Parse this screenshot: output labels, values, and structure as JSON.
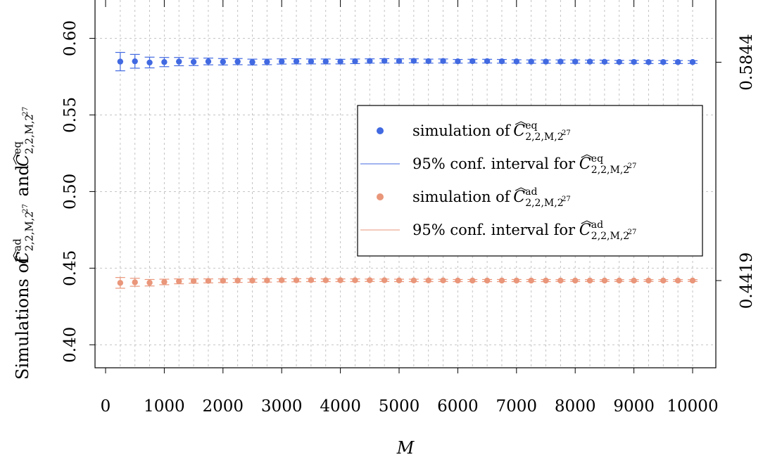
{
  "chart_data": {
    "type": "scatter",
    "xlabel": "M",
    "ylabel": {
      "prefix": "Simulations of",
      "symbol_ad": "C",
      "sup_ad": "ad",
      "sub": "2,2,M,2",
      "sub_exp": "27",
      "connector": "and",
      "symbol_eq": "C",
      "sup_eq": "eq"
    },
    "xlim": [
      0,
      10000
    ],
    "ylim": [
      0.385,
      0.625
    ],
    "x_ticks": [
      0,
      1000,
      2000,
      3000,
      4000,
      5000,
      6000,
      7000,
      8000,
      9000,
      10000
    ],
    "x_tick_labels": [
      "0",
      "1000",
      "2000",
      "3000",
      "4000",
      "5000",
      "6000",
      "7000",
      "8000",
      "9000",
      "10000"
    ],
    "y_ticks": [
      0.4,
      0.45,
      0.5,
      0.55,
      0.6
    ],
    "y_tick_labels": [
      "0.40",
      "0.45",
      "0.50",
      "0.55",
      "0.60"
    ],
    "right_ticks": [
      0.5844,
      0.4419
    ],
    "right_tick_labels": [
      "0.5844",
      "0.4419"
    ],
    "grid": true,
    "legend_position": "right",
    "colors": {
      "eq": "#4169e1",
      "ad": "#e9967a"
    },
    "x": [
      250,
      500,
      750,
      1000,
      1250,
      1500,
      1750,
      2000,
      2250,
      2500,
      2750,
      3000,
      3250,
      3500,
      3750,
      4000,
      4250,
      4500,
      4750,
      5000,
      5250,
      5500,
      5750,
      6000,
      6250,
      6500,
      6750,
      7000,
      7250,
      7500,
      7750,
      8000,
      8250,
      8500,
      8750,
      9000,
      9250,
      9500,
      9750,
      10000
    ],
    "series": [
      {
        "name": "eq",
        "values": [
          0.5848,
          0.585,
          0.5842,
          0.5845,
          0.5848,
          0.5846,
          0.5849,
          0.5847,
          0.5848,
          0.5845,
          0.5846,
          0.5849,
          0.585,
          0.5849,
          0.5849,
          0.5848,
          0.585,
          0.5852,
          0.5853,
          0.5852,
          0.5853,
          0.5851,
          0.5852,
          0.585,
          0.5851,
          0.5851,
          0.585,
          0.5849,
          0.5848,
          0.5848,
          0.5848,
          0.5848,
          0.5848,
          0.5847,
          0.5846,
          0.5846,
          0.5845,
          0.5845,
          0.5845,
          0.5845
        ],
        "ci_half": [
          0.006,
          0.0045,
          0.0035,
          0.003,
          0.0027,
          0.0024,
          0.0022,
          0.0021,
          0.002,
          0.0019,
          0.0018,
          0.0017,
          0.0017,
          0.0016,
          0.0016,
          0.0015,
          0.0015,
          0.0014,
          0.0014,
          0.0014,
          0.0013,
          0.0013,
          0.0013,
          0.0012,
          0.0012,
          0.0012,
          0.0012,
          0.0011,
          0.0011,
          0.0011,
          0.0011,
          0.0011,
          0.001,
          0.001,
          0.001,
          0.001,
          0.001,
          0.001,
          0.001,
          0.0009
        ]
      },
      {
        "name": "ad",
        "values": [
          0.4404,
          0.4408,
          0.4405,
          0.441,
          0.4414,
          0.4416,
          0.4417,
          0.4418,
          0.4419,
          0.4419,
          0.442,
          0.4421,
          0.4421,
          0.4422,
          0.4421,
          0.4421,
          0.4421,
          0.4421,
          0.4421,
          0.442,
          0.442,
          0.442,
          0.442,
          0.4419,
          0.4419,
          0.4419,
          0.4419,
          0.4419,
          0.4419,
          0.4419,
          0.4419,
          0.4419,
          0.4419,
          0.4419,
          0.4419,
          0.4419,
          0.4419,
          0.4419,
          0.4419,
          0.4419
        ],
        "ci_half": [
          0.0035,
          0.0026,
          0.0021,
          0.0018,
          0.0016,
          0.0014,
          0.0013,
          0.0012,
          0.0012,
          0.0011,
          0.0011,
          0.001,
          0.001,
          0.001,
          0.0009,
          0.0009,
          0.0009,
          0.0008,
          0.0008,
          0.0008,
          0.0008,
          0.0008,
          0.0007,
          0.0007,
          0.0007,
          0.0007,
          0.0007,
          0.0007,
          0.0007,
          0.0007,
          0.0006,
          0.0006,
          0.0006,
          0.0006,
          0.0006,
          0.0006,
          0.0006,
          0.0006,
          0.0006,
          0.0006
        ]
      }
    ],
    "legend": [
      {
        "kind": "point",
        "color_key": "eq",
        "text": "simulation of",
        "sup": "eq",
        "sub": "2,2,M,2",
        "sub_exp": "27"
      },
      {
        "kind": "line",
        "color_key": "eq",
        "text": "95% conf. interval for",
        "sup": "eq",
        "sub": "2,2,M,2",
        "sub_exp": "27"
      },
      {
        "kind": "point",
        "color_key": "ad",
        "text": "simulation of",
        "sup": "ad",
        "sub": "2,2,M,2",
        "sub_exp": "27"
      },
      {
        "kind": "line",
        "color_key": "ad",
        "text": "95% conf. interval for",
        "sup": "ad",
        "sub": "2,2,M,2",
        "sub_exp": "27"
      }
    ]
  }
}
